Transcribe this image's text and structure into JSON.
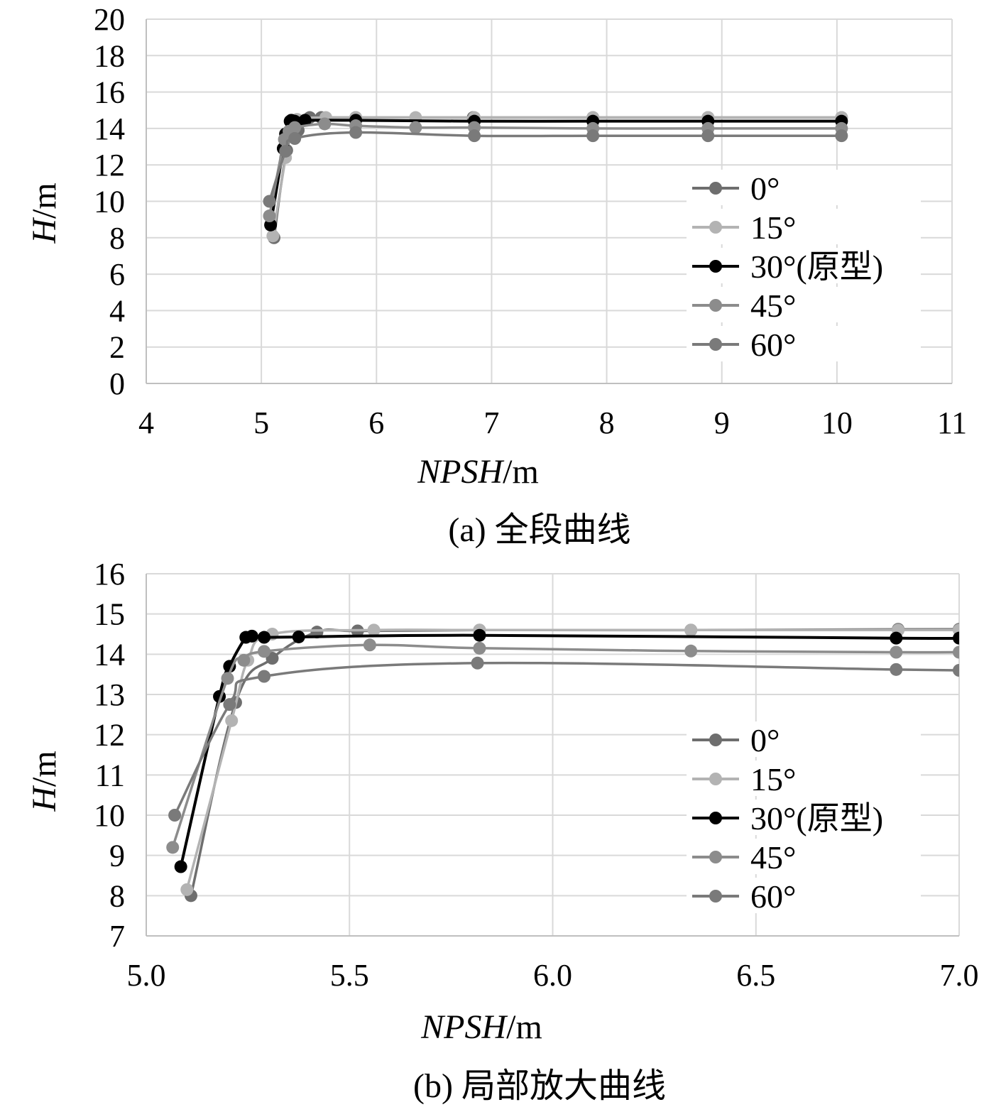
{
  "charts": [
    {
      "id": "full",
      "caption": "(a) 全段曲线",
      "chart_data": {
        "type": "line",
        "xlabel_italic": "NPSH",
        "xlabel_unit": "/m",
        "ylabel_italic": "H",
        "ylabel_unit": "/m",
        "xlim": [
          4,
          11
        ],
        "ylim": [
          0,
          20
        ],
        "xticks": [
          "4",
          "5",
          "6",
          "7",
          "8",
          "9",
          "10",
          "11"
        ],
        "yticks": [
          "0",
          "2",
          "4",
          "6",
          "8",
          "10",
          "12",
          "14",
          "16",
          "18",
          "20"
        ],
        "xtick_values": [
          4,
          5,
          6,
          7,
          8,
          9,
          10,
          11
        ],
        "ytick_values": [
          0,
          2,
          4,
          6,
          8,
          10,
          12,
          14,
          16,
          18,
          20
        ],
        "grid": true,
        "legend_position": "right-middle",
        "series": [
          {
            "name": "0°",
            "color": "#6e6e6e",
            "x": [
              5.11,
              5.22,
              5.32,
              5.42,
              5.52,
              5.82,
              6.84,
              7.88,
              8.88,
              10.04
            ],
            "y": [
              8.0,
              12.8,
              13.9,
              14.6,
              14.6,
              14.6,
              14.6,
              14.6,
              14.6,
              14.6
            ]
          },
          {
            "name": "15°",
            "color": "#b3b3b3",
            "x": [
              5.1,
              5.21,
              5.25,
              5.31,
              5.56,
              5.82,
              6.34,
              6.85,
              7.88,
              8.88,
              10.04
            ],
            "y": [
              8.1,
              12.4,
              13.9,
              14.5,
              14.6,
              14.6,
              14.6,
              14.6,
              14.6,
              14.6,
              14.6
            ]
          },
          {
            "name": "30°(原型)",
            "color": "#000000",
            "x": [
              5.08,
              5.19,
              5.21,
              5.25,
              5.26,
              5.29,
              5.38,
              5.82,
              6.85,
              7.88,
              8.88,
              10.04
            ],
            "y": [
              8.7,
              12.9,
              13.7,
              14.4,
              14.45,
              14.4,
              14.45,
              14.45,
              14.4,
              14.4,
              14.4,
              14.4
            ]
          },
          {
            "name": "45°",
            "color": "#8c8c8c",
            "x": [
              5.07,
              5.2,
              5.24,
              5.29,
              5.55,
              5.82,
              6.34,
              6.85,
              7.88,
              8.88,
              10.04
            ],
            "y": [
              9.2,
              13.4,
              13.85,
              14.05,
              14.25,
              14.15,
              14.05,
              14.05,
              14.0,
              14.0,
              14.0
            ]
          },
          {
            "name": "60°",
            "color": "#7a7a7a",
            "x": [
              5.07,
              5.21,
              5.29,
              5.82,
              6.85,
              7.88,
              8.88,
              10.04
            ],
            "y": [
              10.0,
              12.75,
              13.45,
              13.78,
              13.6,
              13.6,
              13.6,
              13.6
            ]
          }
        ]
      }
    },
    {
      "id": "zoom",
      "caption": "(b) 局部放大曲线",
      "chart_data": {
        "type": "line",
        "xlabel_italic": "NPSH",
        "xlabel_unit": "/m",
        "ylabel_italic": "H",
        "ylabel_unit": "/m",
        "xlim": [
          5.0,
          7.0
        ],
        "ylim": [
          7,
          16
        ],
        "xticks": [
          "5.0",
          "5.5",
          "6.0",
          "6.5",
          "7.0"
        ],
        "yticks": [
          "7",
          "8",
          "9",
          "10",
          "11",
          "12",
          "13",
          "14",
          "15",
          "16"
        ],
        "xtick_values": [
          5.0,
          5.5,
          6.0,
          6.5,
          7.0
        ],
        "ytick_values": [
          7,
          8,
          9,
          10,
          11,
          12,
          13,
          14,
          15,
          16
        ],
        "grid": true,
        "legend_position": "right-middle",
        "series": [
          {
            "name": "0°",
            "color": "#6e6e6e",
            "x": [
              5.11,
              5.22,
              5.31,
              5.42,
              5.52,
              5.82,
              6.34,
              6.85,
              7.0
            ],
            "y": [
              8.0,
              12.8,
              13.9,
              14.55,
              14.58,
              14.6,
              14.6,
              14.62,
              14.62
            ]
          },
          {
            "name": "15°",
            "color": "#b3b3b3",
            "x": [
              5.1,
              5.21,
              5.25,
              5.31,
              5.56,
              5.82,
              6.34,
              6.85,
              7.0
            ],
            "y": [
              8.15,
              12.35,
              13.85,
              14.5,
              14.6,
              14.6,
              14.6,
              14.6,
              14.6
            ]
          },
          {
            "name": "30°(原型)",
            "color": "#000000",
            "x": [
              5.085,
              5.18,
              5.205,
              5.245,
              5.26,
              5.29,
              5.375,
              5.82,
              6.845,
              7.0
            ],
            "y": [
              8.72,
              12.95,
              13.7,
              14.42,
              14.45,
              14.42,
              14.43,
              14.47,
              14.4,
              14.4
            ]
          },
          {
            "name": "45°",
            "color": "#8c8c8c",
            "x": [
              5.065,
              5.2,
              5.24,
              5.29,
              5.55,
              5.82,
              6.34,
              6.845,
              7.0
            ],
            "y": [
              9.2,
              13.4,
              13.85,
              14.07,
              14.23,
              14.15,
              14.08,
              14.05,
              14.05
            ]
          },
          {
            "name": "60°",
            "color": "#7a7a7a",
            "x": [
              5.07,
              5.205,
              5.29,
              5.815,
              6.845,
              7.0
            ],
            "y": [
              10.0,
              12.75,
              13.45,
              13.78,
              13.62,
              13.6
            ]
          }
        ]
      }
    }
  ]
}
